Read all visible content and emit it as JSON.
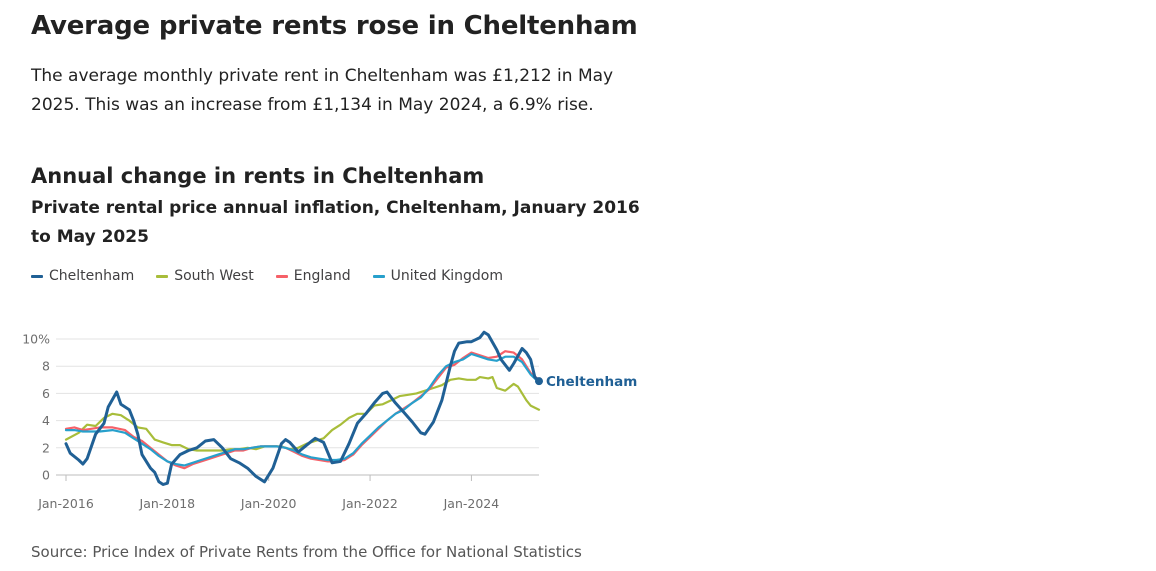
{
  "page": {
    "headline": "Average private rents rose in Cheltenham",
    "summary": "The average monthly private rent in Cheltenham was £1,212 in May 2025. This was an increase from £1,134 in May 2024, a 6.9% rise.",
    "chart_heading": "Annual change in rents in Cheltenham",
    "source": "Source: Price Index of Private Rents from the Office for National Statistics"
  },
  "colors": {
    "Cheltenham": "#206095",
    "South West": "#a8bd3a",
    "England": "#f66068",
    "United Kingdom": "#27a0cc"
  },
  "chart_data": {
    "type": "line",
    "title": "Private rental price annual inflation, Cheltenham, January 2016 to May 2025",
    "xlabel": "",
    "ylabel": "",
    "x_unit": "year-month",
    "x_start": "2016-01",
    "x_end": "2025-05",
    "x_ticks": [
      "Jan-2016",
      "Jan-2018",
      "Jan-2020",
      "Jan-2022",
      "Jan-2024"
    ],
    "ylim": [
      -1,
      10.5
    ],
    "y_ticks": [
      0,
      2,
      4,
      6,
      8,
      10
    ],
    "y_tick_labels": [
      "0",
      "2",
      "4",
      "6",
      "8",
      "10%"
    ],
    "grid": true,
    "legend": "top-left",
    "end_label": "Cheltenham",
    "series": [
      {
        "name": "Cheltenham",
        "points": [
          [
            "2016-01",
            2.3
          ],
          [
            "2016-02",
            1.6
          ],
          [
            "2016-04",
            1.1
          ],
          [
            "2016-05",
            0.8
          ],
          [
            "2016-06",
            1.2
          ],
          [
            "2016-08",
            3.0
          ],
          [
            "2016-10",
            3.8
          ],
          [
            "2016-11",
            5.0
          ],
          [
            "2017-01",
            6.1
          ],
          [
            "2017-02",
            5.2
          ],
          [
            "2017-04",
            4.8
          ],
          [
            "2017-05",
            4.0
          ],
          [
            "2017-06",
            3.0
          ],
          [
            "2017-07",
            1.5
          ],
          [
            "2017-09",
            0.5
          ],
          [
            "2017-10",
            0.2
          ],
          [
            "2017-11",
            -0.5
          ],
          [
            "2017-12",
            -0.7
          ],
          [
            "2018-01",
            -0.6
          ],
          [
            "2018-02",
            0.8
          ],
          [
            "2018-04",
            1.5
          ],
          [
            "2018-06",
            1.8
          ],
          [
            "2018-08",
            2.0
          ],
          [
            "2018-10",
            2.5
          ],
          [
            "2018-12",
            2.6
          ],
          [
            "2019-02",
            2.0
          ],
          [
            "2019-04",
            1.2
          ],
          [
            "2019-06",
            0.9
          ],
          [
            "2019-08",
            0.5
          ],
          [
            "2019-10",
            -0.1
          ],
          [
            "2019-12",
            -0.5
          ],
          [
            "2020-02",
            0.5
          ],
          [
            "2020-04",
            2.3
          ],
          [
            "2020-05",
            2.6
          ],
          [
            "2020-06",
            2.4
          ],
          [
            "2020-08",
            1.7
          ],
          [
            "2020-10",
            2.2
          ],
          [
            "2020-12",
            2.7
          ],
          [
            "2021-02",
            2.4
          ],
          [
            "2021-04",
            0.9
          ],
          [
            "2021-06",
            1.0
          ],
          [
            "2021-08",
            2.3
          ],
          [
            "2021-10",
            3.8
          ],
          [
            "2021-12",
            4.5
          ],
          [
            "2022-02",
            5.3
          ],
          [
            "2022-04",
            6.0
          ],
          [
            "2022-05",
            6.1
          ],
          [
            "2022-07",
            5.3
          ],
          [
            "2022-09",
            4.6
          ],
          [
            "2022-11",
            3.9
          ],
          [
            "2023-01",
            3.1
          ],
          [
            "2023-02",
            3.0
          ],
          [
            "2023-04",
            3.9
          ],
          [
            "2023-06",
            5.5
          ],
          [
            "2023-08",
            8.0
          ],
          [
            "2023-09",
            9.1
          ],
          [
            "2023-10",
            9.7
          ],
          [
            "2023-12",
            9.8
          ],
          [
            "2024-01",
            9.8
          ],
          [
            "2024-03",
            10.1
          ],
          [
            "2024-04",
            10.5
          ],
          [
            "2024-05",
            10.3
          ],
          [
            "2024-07",
            9.2
          ],
          [
            "2024-08",
            8.5
          ],
          [
            "2024-10",
            7.7
          ],
          [
            "2024-11",
            8.2
          ],
          [
            "2025-01",
            9.3
          ],
          [
            "2025-02",
            9.0
          ],
          [
            "2025-03",
            8.5
          ],
          [
            "2025-04",
            7.2
          ],
          [
            "2025-05",
            6.9
          ]
        ]
      },
      {
        "name": "South West",
        "points": [
          [
            "2016-01",
            2.6
          ],
          [
            "2016-04",
            3.1
          ],
          [
            "2016-06",
            3.7
          ],
          [
            "2016-08",
            3.6
          ],
          [
            "2016-10",
            4.2
          ],
          [
            "2016-12",
            4.5
          ],
          [
            "2017-02",
            4.4
          ],
          [
            "2017-04",
            4.0
          ],
          [
            "2017-06",
            3.5
          ],
          [
            "2017-08",
            3.4
          ],
          [
            "2017-10",
            2.6
          ],
          [
            "2017-12",
            2.4
          ],
          [
            "2018-02",
            2.2
          ],
          [
            "2018-04",
            2.2
          ],
          [
            "2018-06",
            1.9
          ],
          [
            "2018-08",
            1.8
          ],
          [
            "2018-10",
            1.8
          ],
          [
            "2018-12",
            1.8
          ],
          [
            "2019-02",
            1.8
          ],
          [
            "2019-04",
            1.9
          ],
          [
            "2019-06",
            1.9
          ],
          [
            "2019-08",
            2.0
          ],
          [
            "2019-10",
            1.9
          ],
          [
            "2019-12",
            2.1
          ],
          [
            "2020-02",
            2.1
          ],
          [
            "2020-04",
            2.1
          ],
          [
            "2020-06",
            1.9
          ],
          [
            "2020-08",
            2.0
          ],
          [
            "2020-10",
            2.3
          ],
          [
            "2020-12",
            2.5
          ],
          [
            "2021-02",
            2.7
          ],
          [
            "2021-04",
            3.3
          ],
          [
            "2021-06",
            3.7
          ],
          [
            "2021-08",
            4.2
          ],
          [
            "2021-10",
            4.5
          ],
          [
            "2021-12",
            4.5
          ],
          [
            "2022-02",
            5.1
          ],
          [
            "2022-04",
            5.2
          ],
          [
            "2022-06",
            5.5
          ],
          [
            "2022-08",
            5.8
          ],
          [
            "2022-10",
            5.9
          ],
          [
            "2022-12",
            6.0
          ],
          [
            "2023-02",
            6.2
          ],
          [
            "2023-04",
            6.4
          ],
          [
            "2023-06",
            6.6
          ],
          [
            "2023-08",
            7.0
          ],
          [
            "2023-10",
            7.1
          ],
          [
            "2023-12",
            7.0
          ],
          [
            "2024-02",
            7.0
          ],
          [
            "2024-03",
            7.2
          ],
          [
            "2024-05",
            7.1
          ],
          [
            "2024-06",
            7.2
          ],
          [
            "2024-07",
            6.4
          ],
          [
            "2024-09",
            6.2
          ],
          [
            "2024-11",
            6.7
          ],
          [
            "2024-12",
            6.5
          ],
          [
            "2025-02",
            5.5
          ],
          [
            "2025-03",
            5.1
          ],
          [
            "2025-05",
            4.8
          ]
        ]
      },
      {
        "name": "England",
        "points": [
          [
            "2016-01",
            3.4
          ],
          [
            "2016-03",
            3.5
          ],
          [
            "2016-05",
            3.3
          ],
          [
            "2016-07",
            3.4
          ],
          [
            "2016-09",
            3.5
          ],
          [
            "2016-12",
            3.5
          ],
          [
            "2017-03",
            3.3
          ],
          [
            "2017-05",
            2.8
          ],
          [
            "2017-07",
            2.5
          ],
          [
            "2017-09",
            2.0
          ],
          [
            "2017-11",
            1.5
          ],
          [
            "2018-01",
            1.0
          ],
          [
            "2018-03",
            0.7
          ],
          [
            "2018-05",
            0.5
          ],
          [
            "2018-07",
            0.8
          ],
          [
            "2018-09",
            1.0
          ],
          [
            "2018-11",
            1.2
          ],
          [
            "2019-01",
            1.4
          ],
          [
            "2019-03",
            1.6
          ],
          [
            "2019-05",
            1.8
          ],
          [
            "2019-07",
            1.8
          ],
          [
            "2019-09",
            2.0
          ],
          [
            "2019-11",
            2.1
          ],
          [
            "2020-01",
            2.1
          ],
          [
            "2020-03",
            2.1
          ],
          [
            "2020-05",
            2.0
          ],
          [
            "2020-07",
            1.7
          ],
          [
            "2020-09",
            1.4
          ],
          [
            "2020-11",
            1.2
          ],
          [
            "2021-01",
            1.1
          ],
          [
            "2021-03",
            1.0
          ],
          [
            "2021-05",
            1.0
          ],
          [
            "2021-07",
            1.1
          ],
          [
            "2021-09",
            1.5
          ],
          [
            "2021-11",
            2.2
          ],
          [
            "2022-01",
            2.8
          ],
          [
            "2022-03",
            3.4
          ],
          [
            "2022-05",
            4.0
          ],
          [
            "2022-07",
            4.5
          ],
          [
            "2022-09",
            4.9
          ],
          [
            "2022-11",
            5.3
          ],
          [
            "2023-01",
            5.8
          ],
          [
            "2023-03",
            6.3
          ],
          [
            "2023-05",
            7.1
          ],
          [
            "2023-07",
            7.9
          ],
          [
            "2023-09",
            8.1
          ],
          [
            "2023-11",
            8.6
          ],
          [
            "2024-01",
            9.0
          ],
          [
            "2024-03",
            8.8
          ],
          [
            "2024-05",
            8.6
          ],
          [
            "2024-07",
            8.7
          ],
          [
            "2024-09",
            9.1
          ],
          [
            "2024-11",
            9.0
          ],
          [
            "2025-01",
            8.5
          ],
          [
            "2025-03",
            7.5
          ],
          [
            "2025-05",
            7.0
          ]
        ]
      },
      {
        "name": "United Kingdom",
        "points": [
          [
            "2016-01",
            3.3
          ],
          [
            "2016-03",
            3.3
          ],
          [
            "2016-05",
            3.2
          ],
          [
            "2016-07",
            3.2
          ],
          [
            "2016-09",
            3.2
          ],
          [
            "2016-12",
            3.3
          ],
          [
            "2017-03",
            3.1
          ],
          [
            "2017-05",
            2.7
          ],
          [
            "2017-07",
            2.3
          ],
          [
            "2017-09",
            1.9
          ],
          [
            "2017-11",
            1.4
          ],
          [
            "2018-01",
            1.0
          ],
          [
            "2018-03",
            0.8
          ],
          [
            "2018-05",
            0.7
          ],
          [
            "2018-07",
            0.9
          ],
          [
            "2018-09",
            1.1
          ],
          [
            "2018-11",
            1.3
          ],
          [
            "2019-01",
            1.5
          ],
          [
            "2019-03",
            1.7
          ],
          [
            "2019-05",
            1.9
          ],
          [
            "2019-07",
            1.9
          ],
          [
            "2019-09",
            2.0
          ],
          [
            "2019-11",
            2.1
          ],
          [
            "2020-01",
            2.1
          ],
          [
            "2020-03",
            2.1
          ],
          [
            "2020-05",
            2.0
          ],
          [
            "2020-07",
            1.8
          ],
          [
            "2020-09",
            1.5
          ],
          [
            "2020-11",
            1.3
          ],
          [
            "2021-01",
            1.2
          ],
          [
            "2021-03",
            1.1
          ],
          [
            "2021-05",
            1.1
          ],
          [
            "2021-07",
            1.2
          ],
          [
            "2021-09",
            1.6
          ],
          [
            "2021-11",
            2.3
          ],
          [
            "2022-01",
            2.9
          ],
          [
            "2022-03",
            3.5
          ],
          [
            "2022-05",
            4.0
          ],
          [
            "2022-07",
            4.5
          ],
          [
            "2022-09",
            4.8
          ],
          [
            "2022-11",
            5.3
          ],
          [
            "2023-01",
            5.7
          ],
          [
            "2023-03",
            6.4
          ],
          [
            "2023-05",
            7.3
          ],
          [
            "2023-07",
            8.0
          ],
          [
            "2023-09",
            8.3
          ],
          [
            "2023-11",
            8.5
          ],
          [
            "2024-01",
            8.9
          ],
          [
            "2024-03",
            8.7
          ],
          [
            "2024-05",
            8.5
          ],
          [
            "2024-07",
            8.4
          ],
          [
            "2024-09",
            8.7
          ],
          [
            "2024-11",
            8.7
          ],
          [
            "2025-01",
            8.3
          ],
          [
            "2025-03",
            7.4
          ],
          [
            "2025-05",
            6.8
          ]
        ]
      }
    ]
  }
}
